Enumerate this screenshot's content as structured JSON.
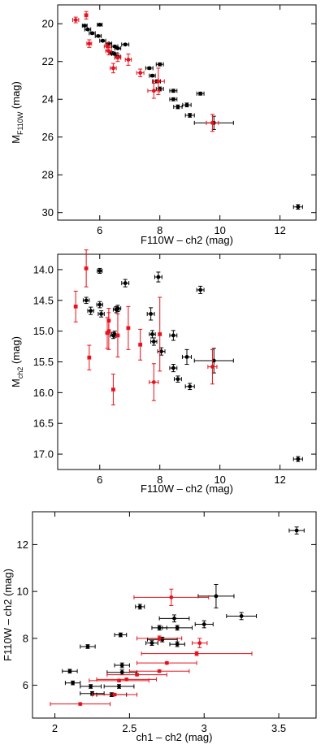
{
  "colors": {
    "black": "#000000",
    "red": "#e8101a",
    "frame": "#000000"
  },
  "chart_data": [
    {
      "type": "scatter",
      "xlabel": "F110W – ch2 (mag)",
      "ylabel": "M",
      "ylabel_sub": "F110W",
      "ylabel_tail": " (mag)",
      "xlim": [
        4.6,
        13.2
      ],
      "ylim": [
        19.0,
        30.4
      ],
      "y_inverted": true,
      "xticks": [
        6,
        8,
        10,
        12
      ],
      "yticks": [
        20,
        22,
        24,
        26,
        28,
        30
      ],
      "series": [
        {
          "color": "black",
          "points": [
            {
              "x": 5.6,
              "y": 20.3,
              "xerr": 0.1,
              "yerr": 0.05
            },
            {
              "x": 5.75,
              "y": 20.5,
              "xerr": 0.1,
              "yerr": 0.05
            },
            {
              "x": 5.5,
              "y": 20.1,
              "xerr": 0.08,
              "yerr": 0.05
            },
            {
              "x": 5.95,
              "y": 20.65,
              "xerr": 0.1,
              "yerr": 0.05
            },
            {
              "x": 6.0,
              "y": 20.05,
              "xerr": 0.08,
              "yerr": 0.05
            },
            {
              "x": 6.1,
              "y": 20.9,
              "xerr": 0.1,
              "yerr": 0.05
            },
            {
              "x": 6.3,
              "y": 21.05,
              "xerr": 0.1,
              "yerr": 0.05
            },
            {
              "x": 6.5,
              "y": 21.2,
              "xerr": 0.1,
              "yerr": 0.05
            },
            {
              "x": 6.6,
              "y": 21.3,
              "xerr": 0.1,
              "yerr": 0.05
            },
            {
              "x": 6.4,
              "y": 21.55,
              "xerr": 0.1,
              "yerr": 0.08
            },
            {
              "x": 6.5,
              "y": 21.6,
              "xerr": 0.1,
              "yerr": 0.06
            },
            {
              "x": 6.85,
              "y": 21.1,
              "xerr": 0.12,
              "yerr": 0.05
            },
            {
              "x": 6.6,
              "y": 21.75,
              "xerr": 0.1,
              "yerr": 0.06
            },
            {
              "x": 7.65,
              "y": 22.35,
              "xerr": 0.12,
              "yerr": 0.06
            },
            {
              "x": 7.75,
              "y": 22.75,
              "xerr": 0.1,
              "yerr": 0.06
            },
            {
              "x": 7.9,
              "y": 23.05,
              "xerr": 0.12,
              "yerr": 0.08
            },
            {
              "x": 8.0,
              "y": 22.15,
              "xerr": 0.12,
              "yerr": 0.08
            },
            {
              "x": 8.0,
              "y": 23.45,
              "xerr": 0.12,
              "yerr": 0.1
            },
            {
              "x": 8.45,
              "y": 23.55,
              "xerr": 0.12,
              "yerr": 0.08
            },
            {
              "x": 8.45,
              "y": 24.0,
              "xerr": 0.12,
              "yerr": 0.08
            },
            {
              "x": 8.6,
              "y": 24.4,
              "xerr": 0.14,
              "yerr": 0.1
            },
            {
              "x": 8.9,
              "y": 24.3,
              "xerr": 0.14,
              "yerr": 0.1
            },
            {
              "x": 9.0,
              "y": 24.85,
              "xerr": 0.15,
              "yerr": 0.1
            },
            {
              "x": 9.35,
              "y": 23.7,
              "xerr": 0.12,
              "yerr": 0.08
            },
            {
              "x": 9.8,
              "y": 25.25,
              "xerr": 0.65,
              "yerr": 0.35
            },
            {
              "x": 12.6,
              "y": 29.7,
              "xerr": 0.15,
              "yerr": 0.12
            }
          ]
        },
        {
          "color": "red",
          "points": [
            {
              "x": 5.2,
              "y": 19.8,
              "xerr": 0.1,
              "yerr": 0.15
            },
            {
              "x": 5.55,
              "y": 19.55,
              "xerr": 0.05,
              "yerr": 0.2
            },
            {
              "x": 5.65,
              "y": 21.05,
              "xerr": 0.08,
              "yerr": 0.2
            },
            {
              "x": 6.25,
              "y": 21.2,
              "xerr": 0.1,
              "yerr": 0.2
            },
            {
              "x": 6.3,
              "y": 21.45,
              "xerr": 0.1,
              "yerr": 0.2
            },
            {
              "x": 6.45,
              "y": 22.35,
              "xerr": 0.1,
              "yerr": 0.25
            },
            {
              "x": 6.6,
              "y": 21.8,
              "xerr": 0.1,
              "yerr": 0.2
            },
            {
              "x": 6.95,
              "y": 21.9,
              "xerr": 0.1,
              "yerr": 0.3
            },
            {
              "x": 7.35,
              "y": 22.6,
              "xerr": 0.12,
              "yerr": 0.2
            },
            {
              "x": 7.8,
              "y": 23.55,
              "xerr": 0.2,
              "yerr": 0.4
            },
            {
              "x": 7.95,
              "y": 23.05,
              "xerr": 0.2,
              "yerr": 0.7
            },
            {
              "x": 9.75,
              "y": 25.25,
              "xerr": 0.2,
              "yerr": 0.45
            }
          ]
        }
      ]
    },
    {
      "type": "scatter",
      "xlabel": "F110W – ch2 (mag)",
      "ylabel": "M",
      "ylabel_sub": "ch2",
      "ylabel_tail": " (mag)",
      "xlim": [
        4.6,
        13.2
      ],
      "ylim": [
        13.75,
        17.25
      ],
      "y_inverted": true,
      "xticks": [
        6,
        8,
        10,
        12
      ],
      "yticks": [
        14.0,
        14.5,
        15.0,
        15.5,
        16.0,
        16.5,
        17.0
      ],
      "series": [
        {
          "color": "black",
          "points": [
            {
              "x": 5.55,
              "y": 14.5,
              "xerr": 0.1,
              "yerr": 0.05
            },
            {
              "x": 5.7,
              "y": 14.67,
              "xerr": 0.1,
              "yerr": 0.06
            },
            {
              "x": 6.0,
              "y": 14.02,
              "xerr": 0.08,
              "yerr": 0.04
            },
            {
              "x": 6.0,
              "y": 14.57,
              "xerr": 0.1,
              "yerr": 0.05
            },
            {
              "x": 6.05,
              "y": 14.72,
              "xerr": 0.1,
              "yerr": 0.05
            },
            {
              "x": 6.5,
              "y": 15.05,
              "xerr": 0.1,
              "yerr": 0.05
            },
            {
              "x": 6.45,
              "y": 15.07,
              "xerr": 0.1,
              "yerr": 0.05
            },
            {
              "x": 6.55,
              "y": 14.65,
              "xerr": 0.1,
              "yerr": 0.05
            },
            {
              "x": 6.6,
              "y": 14.63,
              "xerr": 0.1,
              "yerr": 0.05
            },
            {
              "x": 6.85,
              "y": 14.22,
              "xerr": 0.12,
              "yerr": 0.06
            },
            {
              "x": 7.7,
              "y": 14.72,
              "xerr": 0.12,
              "yerr": 0.1
            },
            {
              "x": 7.75,
              "y": 15.05,
              "xerr": 0.1,
              "yerr": 0.06
            },
            {
              "x": 7.8,
              "y": 15.17,
              "xerr": 0.1,
              "yerr": 0.06
            },
            {
              "x": 7.95,
              "y": 14.12,
              "xerr": 0.12,
              "yerr": 0.08
            },
            {
              "x": 8.05,
              "y": 15.33,
              "xerr": 0.12,
              "yerr": 0.06
            },
            {
              "x": 8.45,
              "y": 15.07,
              "xerr": 0.12,
              "yerr": 0.08
            },
            {
              "x": 8.45,
              "y": 15.6,
              "xerr": 0.12,
              "yerr": 0.06
            },
            {
              "x": 8.6,
              "y": 15.78,
              "xerr": 0.12,
              "yerr": 0.05
            },
            {
              "x": 8.9,
              "y": 15.42,
              "xerr": 0.15,
              "yerr": 0.12
            },
            {
              "x": 9.0,
              "y": 15.9,
              "xerr": 0.15,
              "yerr": 0.05
            },
            {
              "x": 9.35,
              "y": 14.33,
              "xerr": 0.12,
              "yerr": 0.06
            },
            {
              "x": 9.8,
              "y": 15.48,
              "xerr": 0.65,
              "yerr": 0.2
            },
            {
              "x": 12.6,
              "y": 17.08,
              "xerr": 0.15,
              "yerr": 0.04
            }
          ]
        },
        {
          "color": "red",
          "points": [
            {
              "x": 5.2,
              "y": 14.6,
              "xerr": 0.05,
              "yerr": 0.25
            },
            {
              "x": 5.55,
              "y": 13.98,
              "xerr": 0.05,
              "yerr": 0.3
            },
            {
              "x": 5.65,
              "y": 15.43,
              "xerr": 0.05,
              "yerr": 0.2
            },
            {
              "x": 6.3,
              "y": 14.83,
              "xerr": 0.05,
              "yerr": 0.2
            },
            {
              "x": 6.25,
              "y": 15.03,
              "xerr": 0.05,
              "yerr": 0.25
            },
            {
              "x": 6.3,
              "y": 15.0,
              "xerr": 0.05,
              "yerr": 0.3
            },
            {
              "x": 6.45,
              "y": 15.95,
              "xerr": 0.05,
              "yerr": 0.25
            },
            {
              "x": 6.6,
              "y": 15.07,
              "xerr": 0.05,
              "yerr": 0.35
            },
            {
              "x": 6.95,
              "y": 14.95,
              "xerr": 0.05,
              "yerr": 0.35
            },
            {
              "x": 7.35,
              "y": 15.22,
              "xerr": 0.05,
              "yerr": 0.25
            },
            {
              "x": 7.8,
              "y": 15.83,
              "xerr": 0.15,
              "yerr": 0.3
            },
            {
              "x": 8.0,
              "y": 15.05,
              "xerr": 0.05,
              "yerr": 0.6
            },
            {
              "x": 9.75,
              "y": 15.58,
              "xerr": 0.15,
              "yerr": 0.28
            }
          ]
        }
      ]
    },
    {
      "type": "scatter",
      "xlabel": "ch1 – ch2 (mag)",
      "ylabel": "F110W – ch2 (mag)",
      "ylabel_sub": "",
      "ylabel_tail": "",
      "xlim": [
        1.85,
        3.75
      ],
      "ylim": [
        4.6,
        13.4
      ],
      "y_inverted": false,
      "xticks": [
        2.0,
        2.5,
        3.0,
        3.5
      ],
      "yticks": [
        6,
        8,
        10,
        12
      ],
      "series": [
        {
          "color": "black",
          "points": [
            {
              "x": 2.1,
              "y": 6.6,
              "xerr": 0.05,
              "yerr": 0.08
            },
            {
              "x": 2.12,
              "y": 6.1,
              "xerr": 0.05,
              "yerr": 0.08
            },
            {
              "x": 2.22,
              "y": 7.65,
              "xerr": 0.05,
              "yerr": 0.08
            },
            {
              "x": 2.24,
              "y": 5.95,
              "xerr": 0.07,
              "yerr": 0.08
            },
            {
              "x": 2.25,
              "y": 5.65,
              "xerr": 0.08,
              "yerr": 0.08
            },
            {
              "x": 2.38,
              "y": 5.6,
              "xerr": 0.1,
              "yerr": 0.08
            },
            {
              "x": 2.45,
              "y": 6.85,
              "xerr": 0.05,
              "yerr": 0.1
            },
            {
              "x": 2.45,
              "y": 6.55,
              "xerr": 0.1,
              "yerr": 0.1
            },
            {
              "x": 2.43,
              "y": 5.95,
              "xerr": 0.1,
              "yerr": 0.08
            },
            {
              "x": 2.44,
              "y": 8.15,
              "xerr": 0.04,
              "yerr": 0.08
            },
            {
              "x": 2.57,
              "y": 9.35,
              "xerr": 0.03,
              "yerr": 0.1
            },
            {
              "x": 2.65,
              "y": 7.8,
              "xerr": 0.04,
              "yerr": 0.1
            },
            {
              "x": 2.7,
              "y": 8.45,
              "xerr": 0.05,
              "yerr": 0.1
            },
            {
              "x": 2.72,
              "y": 7.95,
              "xerr": 0.1,
              "yerr": 0.1
            },
            {
              "x": 2.8,
              "y": 8.85,
              "xerr": 0.1,
              "yerr": 0.15
            },
            {
              "x": 2.82,
              "y": 8.45,
              "xerr": 0.1,
              "yerr": 0.1
            },
            {
              "x": 2.82,
              "y": 7.75,
              "xerr": 0.05,
              "yerr": 0.1
            },
            {
              "x": 3.0,
              "y": 8.6,
              "xerr": 0.06,
              "yerr": 0.15
            },
            {
              "x": 3.08,
              "y": 9.8,
              "xerr": 0.12,
              "yerr": 0.5
            },
            {
              "x": 3.25,
              "y": 8.95,
              "xerr": 0.1,
              "yerr": 0.15
            },
            {
              "x": 3.62,
              "y": 12.6,
              "xerr": 0.05,
              "yerr": 0.15
            }
          ]
        },
        {
          "color": "red",
          "points": [
            {
              "x": 2.17,
              "y": 5.2,
              "xerr": 0.2,
              "yerr": 0.05
            },
            {
              "x": 2.4,
              "y": 5.6,
              "xerr": 0.15,
              "yerr": 0.05
            },
            {
              "x": 2.43,
              "y": 6.2,
              "xerr": 0.2,
              "yerr": 0.05
            },
            {
              "x": 2.48,
              "y": 6.25,
              "xerr": 0.2,
              "yerr": 0.05
            },
            {
              "x": 2.55,
              "y": 6.45,
              "xerr": 0.2,
              "yerr": 0.05
            },
            {
              "x": 2.7,
              "y": 6.6,
              "xerr": 0.2,
              "yerr": 0.05
            },
            {
              "x": 2.7,
              "y": 8.0,
              "xerr": 0.15,
              "yerr": 0.1
            },
            {
              "x": 2.75,
              "y": 6.95,
              "xerr": 0.2,
              "yerr": 0.05
            },
            {
              "x": 2.78,
              "y": 9.75,
              "xerr": 0.25,
              "yerr": 0.35
            },
            {
              "x": 2.95,
              "y": 7.35,
              "xerr": 0.37,
              "yerr": 0.08
            },
            {
              "x": 2.97,
              "y": 7.8,
              "xerr": 0.05,
              "yerr": 0.2
            }
          ]
        }
      ]
    }
  ]
}
